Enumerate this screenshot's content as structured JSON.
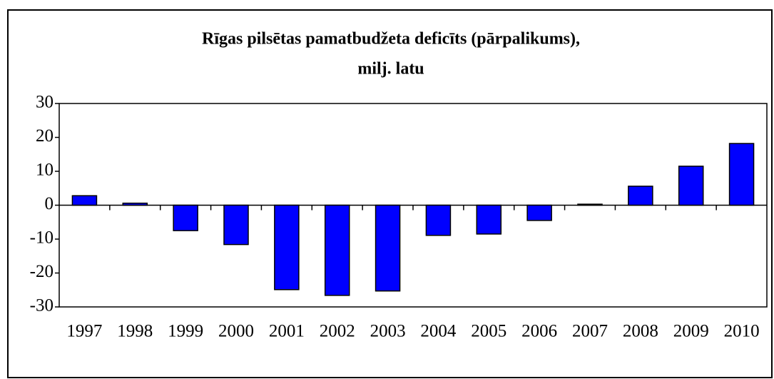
{
  "chart_data": {
    "type": "bar",
    "title": [
      "Rīgas pilsētas pamatbudžeta deficīts (pārpalikums),",
      "milj. latu"
    ],
    "categories": [
      "1997",
      "1998",
      "1999",
      "2000",
      "2001",
      "2002",
      "2003",
      "2004",
      "2005",
      "2006",
      "2007",
      "2008",
      "2009",
      "2010"
    ],
    "values": [
      2.8,
      0.6,
      -7.5,
      -11.6,
      -24.9,
      -26.6,
      -25.3,
      -8.9,
      -8.5,
      -4.5,
      0.3,
      5.6,
      11.5,
      18.2
    ],
    "color": "#0000ff",
    "ylim": [
      -30,
      30
    ],
    "yticks": [
      -30,
      -20,
      -10,
      0,
      10,
      20,
      30
    ],
    "grid": false
  }
}
